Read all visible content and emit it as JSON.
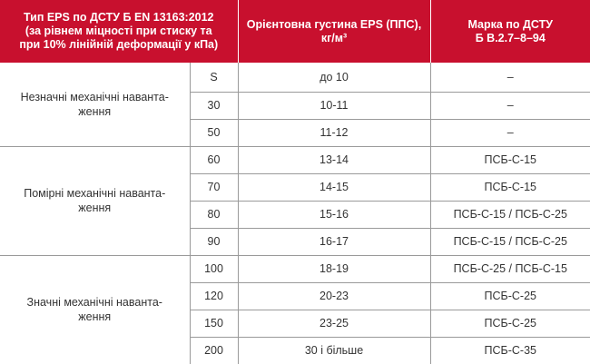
{
  "header": {
    "type_lines": [
      "Тип EPS по ДСТУ Б EN 13163:2012",
      "(за рівнем міцності при стиску та",
      "при 10% лінійній деформації у кПа)"
    ],
    "density_lines": [
      "Орієнтовна густина EPS (ППС),",
      "кг/м³"
    ],
    "grade_lines": [
      "Марка по ДСТУ",
      "Б В.2.7–8–94"
    ]
  },
  "groups": [
    {
      "label_lines": [
        "Незначні механічні наванта-",
        "ження"
      ],
      "rows": [
        {
          "type": "S",
          "density": "до 10",
          "grade": "–"
        },
        {
          "type": "30",
          "density": "10-11",
          "grade": "–"
        },
        {
          "type": "50",
          "density": "11-12",
          "grade": "–"
        }
      ]
    },
    {
      "label_lines": [
        "Помірні механічні наванта-",
        "ження"
      ],
      "rows": [
        {
          "type": "60",
          "density": "13-14",
          "grade": "ПСБ-С-15"
        },
        {
          "type": "70",
          "density": "14-15",
          "grade": "ПСБ-С-15"
        },
        {
          "type": "80",
          "density": "15-16",
          "grade": "ПСБ-С-15 / ПСБ-С-25"
        },
        {
          "type": "90",
          "density": "16-17",
          "grade": "ПСБ-С-15 / ПСБ-С-25"
        }
      ]
    },
    {
      "label_lines": [
        "Значні механічні наванта-",
        "ження"
      ],
      "rows": [
        {
          "type": "100",
          "density": "18-19",
          "grade": "ПСБ-С-25 / ПСБ-С-15"
        },
        {
          "type": "120",
          "density": "20-23",
          "grade": "ПСБ-С-25"
        },
        {
          "type": "150",
          "density": "23-25",
          "grade": "ПСБ-С-25"
        },
        {
          "type": "200",
          "density": "30 і більше",
          "grade": "ПСБ-С-35"
        }
      ]
    }
  ],
  "colors": {
    "header_background": "#c8102e",
    "header_text": "#ffffff",
    "body_text": "#333333",
    "grid_line": "#9a9a9a"
  }
}
